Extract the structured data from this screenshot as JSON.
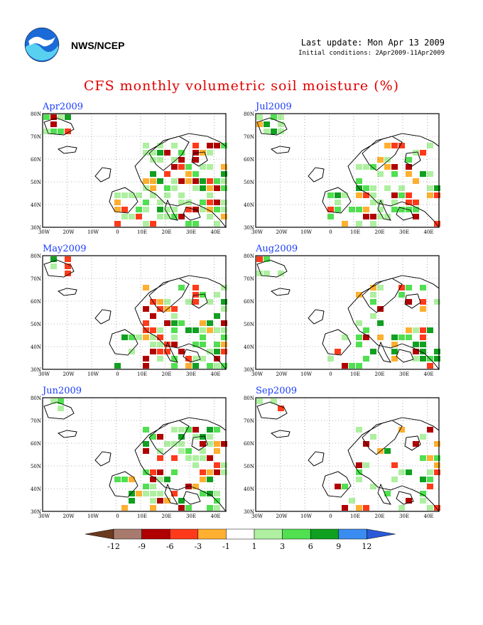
{
  "header": {
    "agency": "NWS/NCEP",
    "last_update": "Last update: Mon Apr 13 2009",
    "initial_conditions": "Initial conditions: 2Apr2009-11Apr2009",
    "title": "CFS monthly volumetric soil moisture (%)"
  },
  "panels": [
    {
      "label": "Apr2009"
    },
    {
      "label": "Jul2009"
    },
    {
      "label": "May2009"
    },
    {
      "label": "Aug2009"
    },
    {
      "label": "Jun2009"
    },
    {
      "label": "Sep2009"
    }
  ],
  "axes": {
    "lat_labels": [
      "80N",
      "70N",
      "60N",
      "50N",
      "40N",
      "30N"
    ],
    "lon_labels": [
      "30W",
      "20W",
      "10W",
      "0",
      "10E",
      "20E",
      "30E",
      "40E"
    ]
  },
  "colorbar": {
    "labels": [
      "-12",
      "-9",
      "-6",
      "-3",
      "-1",
      "1",
      "3",
      "6",
      "9",
      "12"
    ],
    "colors": [
      "#6b3a1f",
      "#a87a6e",
      "#b00000",
      "#ff3a1a",
      "#ffb030",
      "#ffffff",
      "#aef0a0",
      "#50e050",
      "#10a020",
      "#3a8cf0",
      "#2a5ad8"
    ]
  },
  "colors": {
    "title": "#e00000",
    "panel_label": "#1a3cff"
  }
}
